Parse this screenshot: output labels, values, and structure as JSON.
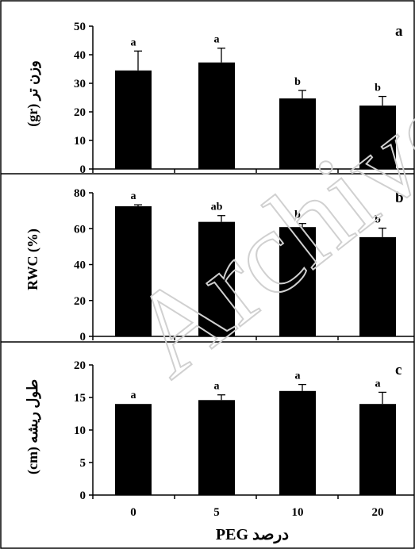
{
  "chart_data": [
    {
      "type": "bar",
      "panel_label": "a",
      "ylabel": "وزن تر (gr)",
      "categories": [
        "0",
        "5",
        "10",
        "20"
      ],
      "values": [
        34.5,
        37.3,
        24.7,
        22.2
      ],
      "errors": [
        6.8,
        5.0,
        2.8,
        3.2
      ],
      "letters": [
        "a",
        "a",
        "b",
        "b"
      ],
      "ylim": [
        0,
        50
      ],
      "yticks": [
        0,
        10,
        20,
        30,
        40,
        50
      ]
    },
    {
      "type": "bar",
      "panel_label": "b",
      "ylabel": "RWC (%)",
      "categories": [
        "0",
        "5",
        "10",
        "20"
      ],
      "values": [
        72.5,
        63.8,
        60.9,
        55.3
      ],
      "errors": [
        0.8,
        3.5,
        2.0,
        5.0
      ],
      "letters": [
        "a",
        "ab",
        "b",
        "b"
      ],
      "ylim": [
        0,
        80
      ],
      "yticks": [
        0,
        20,
        40,
        60,
        80
      ]
    },
    {
      "type": "bar",
      "panel_label": "c",
      "ylabel": "طول ریشه (cm)",
      "categories": [
        "0",
        "5",
        "10",
        "20"
      ],
      "values": [
        14.0,
        14.6,
        16.0,
        14.0
      ],
      "errors": [
        0.0,
        0.8,
        1.0,
        1.8
      ],
      "letters": [
        "a",
        "a",
        "a",
        "a"
      ],
      "ylim": [
        0,
        20
      ],
      "yticks": [
        0,
        5,
        10,
        15,
        20
      ]
    }
  ],
  "x_tick_labels": [
    "0",
    "5",
    "10",
    "20"
  ],
  "xlabel": "درصد PEG",
  "watermark": "Archive",
  "colors": {
    "bar": "#000000",
    "frame": "#000000",
    "watermark": "#d0d0d0"
  }
}
